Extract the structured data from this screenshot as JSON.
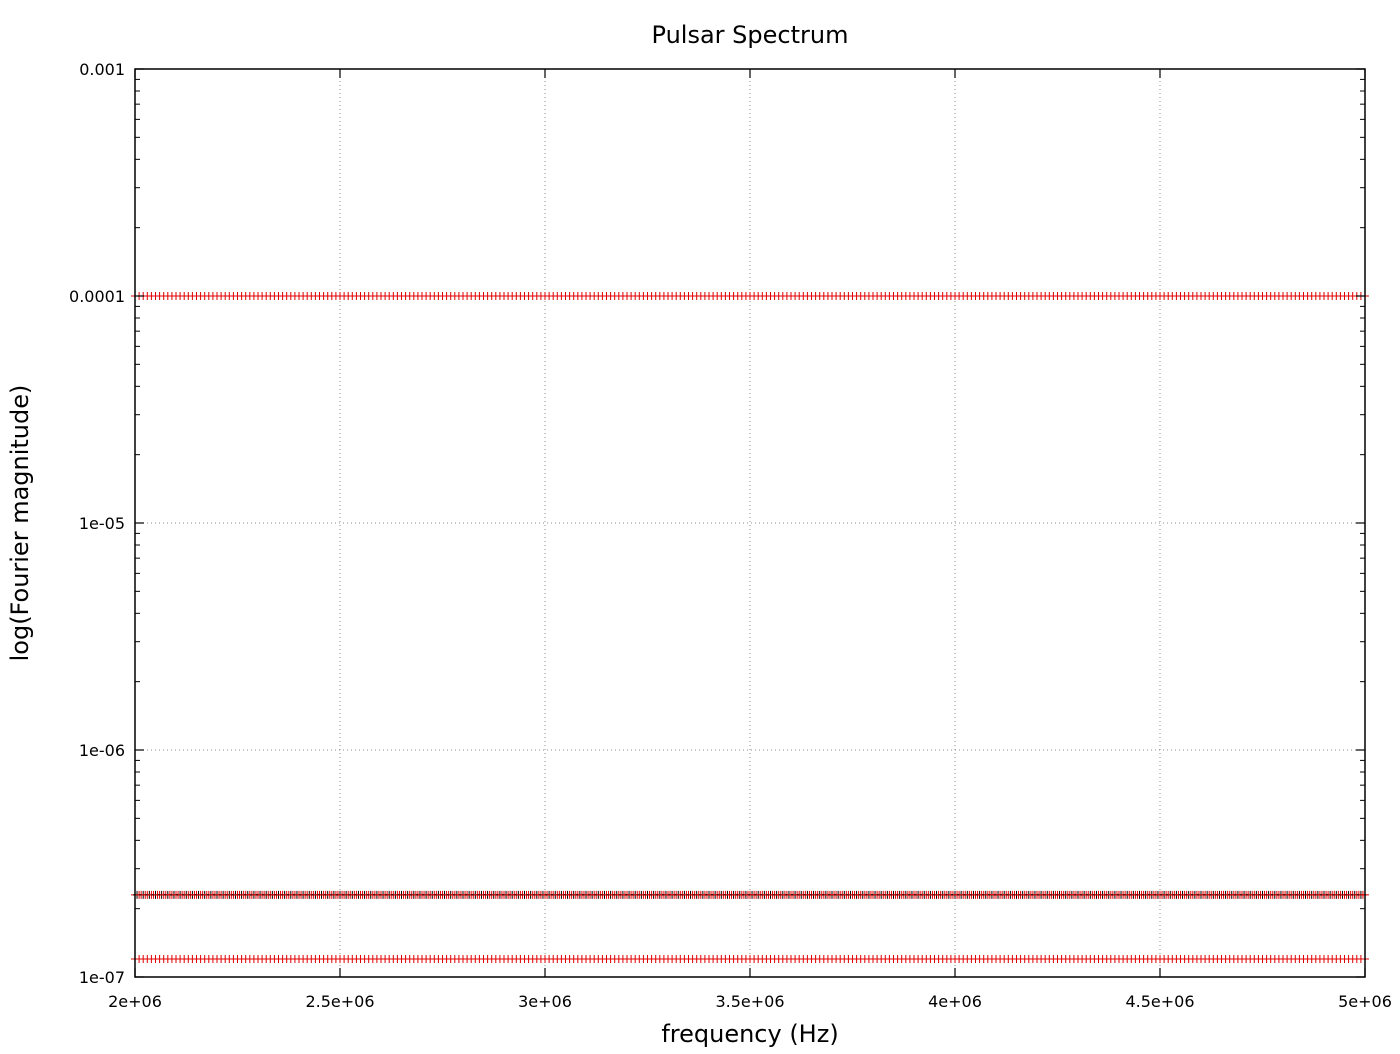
{
  "chart_data": {
    "type": "scatter",
    "title": "Pulsar Spectrum",
    "xlabel": "frequency (Hz)",
    "ylabel": "log(Fourier magnitude)",
    "yscale": "log",
    "xlim": [
      2000000,
      5000000
    ],
    "ylim": [
      1e-07,
      0.001
    ],
    "grid": true,
    "xticks": [
      {
        "value": 2000000,
        "label": "2e+06"
      },
      {
        "value": 2500000,
        "label": "2.5e+06"
      },
      {
        "value": 3000000,
        "label": "3e+06"
      },
      {
        "value": 3500000,
        "label": "3.5e+06"
      },
      {
        "value": 4000000,
        "label": "4e+06"
      },
      {
        "value": 4500000,
        "label": "4.5e+06"
      },
      {
        "value": 5000000,
        "label": "5e+06"
      }
    ],
    "yticks": [
      {
        "value": 0.001,
        "label": "0.001"
      },
      {
        "value": 0.0001,
        "label": "0.0001"
      },
      {
        "value": 1e-05,
        "label": "1e-05"
      },
      {
        "value": 1e-06,
        "label": "1e-06"
      },
      {
        "value": 1e-07,
        "label": "1e-07"
      }
    ],
    "series": [
      {
        "color": "#e00000",
        "marker": "plus",
        "x_start": 2000000,
        "x_end": 5000000,
        "x_step": 10000,
        "y": 0.0001
      },
      {
        "color": "#e00000",
        "marker": "plus",
        "x_start": 2000000,
        "x_end": 5000000,
        "x_step": 5000,
        "y": 2.3e-07,
        "note_mixed_black": true
      },
      {
        "color": "#e00000",
        "marker": "plus",
        "x_start": 2000000,
        "x_end": 5000000,
        "x_step": 10000,
        "y": 1.2e-07
      }
    ],
    "colors": {
      "marker_primary": "#e00000",
      "marker_secondary": "#000000",
      "grid": "#8c8c8c",
      "frame": "#000000"
    }
  }
}
